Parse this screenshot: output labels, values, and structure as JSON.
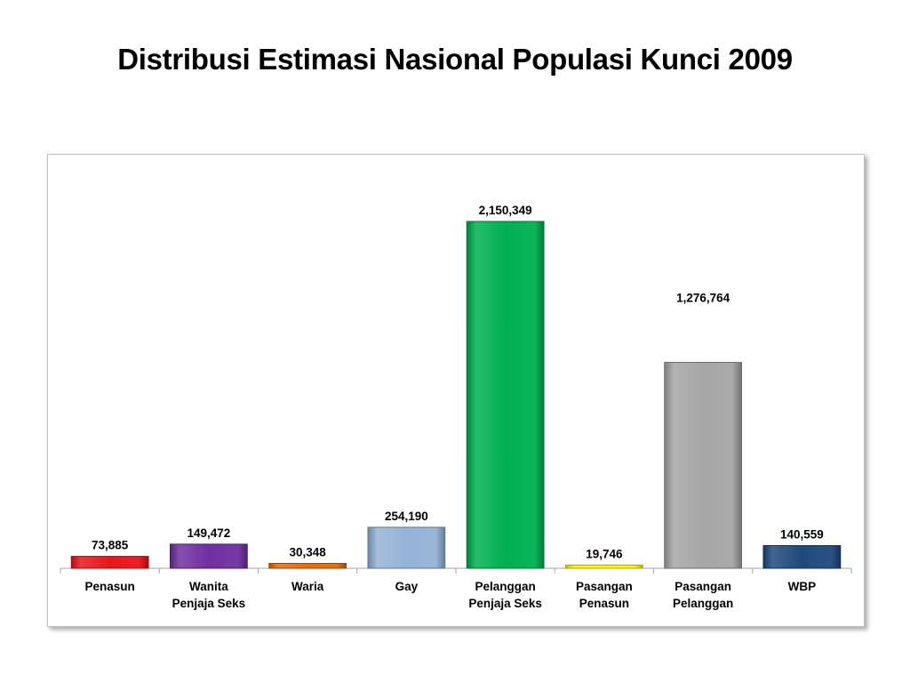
{
  "slide": {
    "title": "Distribusi Estimasi Nasional Populasi Kunci 2009"
  },
  "chart_data": {
    "type": "bar",
    "title": "",
    "xlabel": "",
    "ylabel": "",
    "ylim": [
      0,
      2400000
    ],
    "grid": false,
    "legend": "none",
    "categories": [
      [
        "Penasun"
      ],
      [
        "Wanita",
        "Penjaja Seks"
      ],
      [
        "Waria"
      ],
      [
        "Gay"
      ],
      [
        "Pelanggan",
        "Penjaja Seks"
      ],
      [
        "Pasangan",
        "Penasun"
      ],
      [
        "Pasangan",
        "Pelanggan"
      ],
      [
        "WBP"
      ]
    ],
    "values": [
      73885,
      149472,
      30348,
      254190,
      2150349,
      19746,
      1276764,
      140559
    ],
    "value_labels": [
      "73,885",
      "149,472",
      "30,348",
      "254,190",
      "2,150,349",
      "19,746",
      "1,276,764",
      "140,559"
    ],
    "colors": [
      "#e8161b",
      "#7030a0",
      "#e46c0a",
      "#95b3d7",
      "#00b050",
      "#ffff00",
      "#a6a6a6",
      "#1f497d"
    ]
  }
}
